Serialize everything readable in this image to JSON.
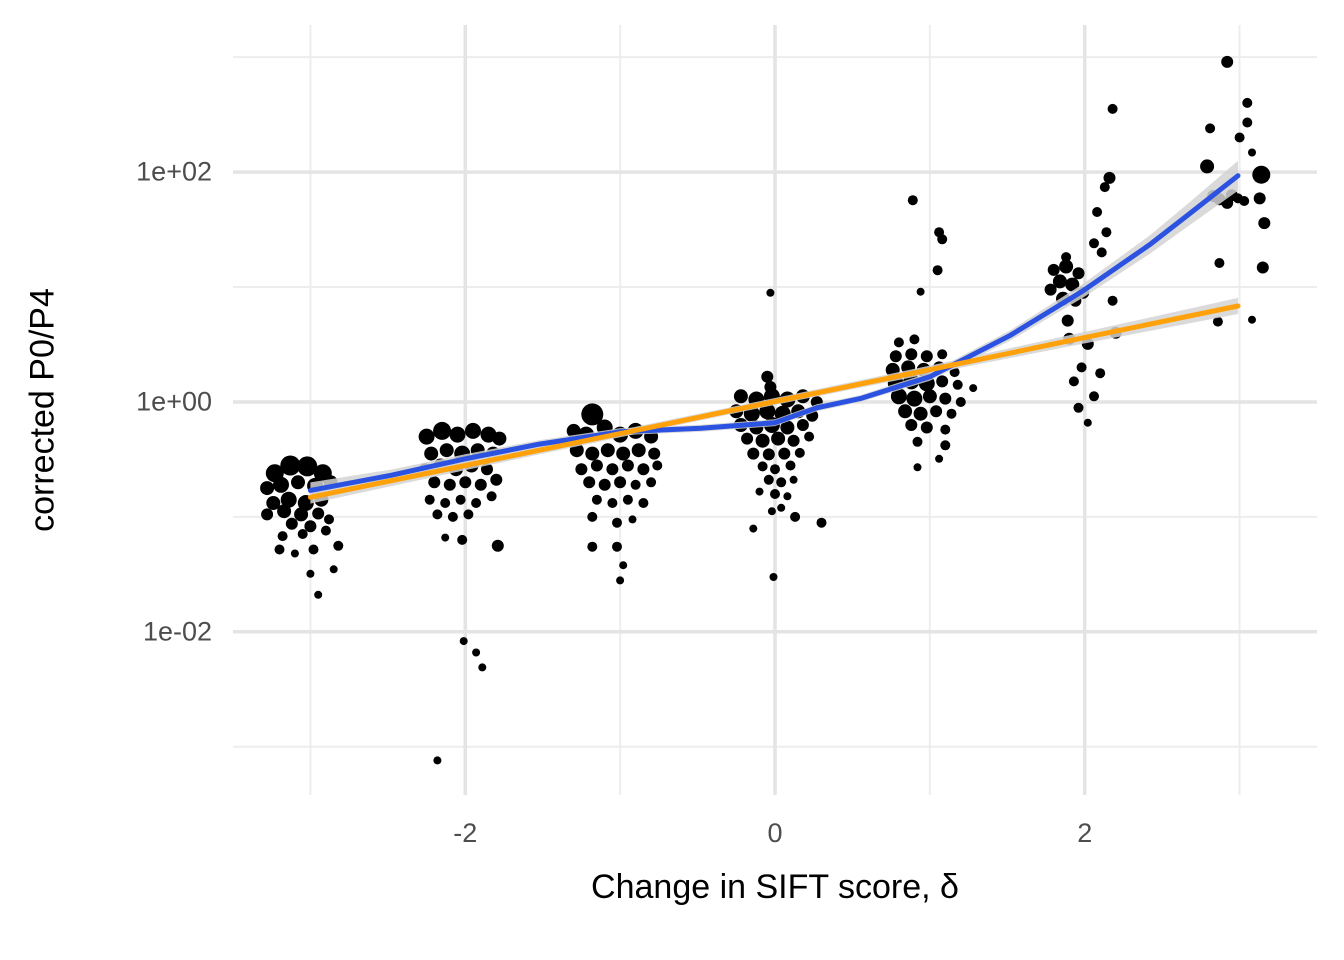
{
  "figure": {
    "background": "#ffffff",
    "grid_major_color": "#e4e4e4",
    "grid_minor_color": "#ededed",
    "tick_label_color": "#4d4d4d",
    "point_color": "#000000",
    "band_color": "#d4d4d4"
  },
  "chart_data": {
    "type": "scatter",
    "title": "",
    "xlabel": "Change in SIFT score, δ",
    "ylabel": "corrected P0/P4",
    "grid": true,
    "legend": "none",
    "x_axis": {
      "range": [
        -3.5,
        3.5
      ],
      "major_ticks": [
        -2,
        0,
        2
      ],
      "major_tick_labels": [
        "-2",
        "0",
        "2"
      ],
      "minor_ticks": [
        -3,
        -1,
        1,
        3
      ]
    },
    "y_axis": {
      "scale": "log10",
      "range_log10": [
        -3.42,
        3.28
      ],
      "major_ticks_log10": [
        2,
        0,
        -2
      ],
      "major_tick_labels": [
        "1e+02",
        "1e+00",
        "1e-02"
      ],
      "minor_ticks_log10": [
        3,
        1,
        -1,
        -3
      ]
    },
    "points_format": [
      "x_delta",
      "y_value",
      "radius_px"
    ],
    "points": [
      [
        -3.23,
        0.24,
        9
      ],
      [
        -3.13,
        0.28,
        10
      ],
      [
        -3.02,
        0.275,
        10
      ],
      [
        -2.92,
        0.24,
        9
      ],
      [
        -3.28,
        0.178,
        7
      ],
      [
        -3.19,
        0.19,
        8
      ],
      [
        -3.08,
        0.2,
        7
      ],
      [
        -2.97,
        0.186,
        8
      ],
      [
        -2.87,
        0.2,
        7
      ],
      [
        -3.24,
        0.132,
        7
      ],
      [
        -3.14,
        0.141,
        8
      ],
      [
        -3.03,
        0.132,
        8
      ],
      [
        -2.93,
        0.141,
        7
      ],
      [
        -3.28,
        0.105,
        6
      ],
      [
        -3.17,
        0.112,
        7
      ],
      [
        -3.06,
        0.105,
        7
      ],
      [
        -2.95,
        0.107,
        6
      ],
      [
        -3.12,
        0.087,
        6
      ],
      [
        -3.0,
        0.083,
        6
      ],
      [
        -2.88,
        0.095,
        5
      ],
      [
        -3.18,
        0.068,
        5
      ],
      [
        -3.05,
        0.071,
        5
      ],
      [
        -2.9,
        0.076,
        5
      ],
      [
        -3.2,
        0.052,
        5
      ],
      [
        -3.1,
        0.048,
        4
      ],
      [
        -2.98,
        0.052,
        5
      ],
      [
        -2.82,
        0.056,
        5
      ],
      [
        -3.0,
        0.032,
        4
      ],
      [
        -2.85,
        0.035,
        4
      ],
      [
        -2.95,
        0.021,
        4
      ],
      [
        -2.25,
        0.5,
        8
      ],
      [
        -2.15,
        0.56,
        9
      ],
      [
        -2.05,
        0.52,
        8
      ],
      [
        -1.95,
        0.56,
        8
      ],
      [
        -1.85,
        0.52,
        8
      ],
      [
        -1.78,
        0.48,
        7
      ],
      [
        -2.22,
        0.355,
        7
      ],
      [
        -2.12,
        0.38,
        7
      ],
      [
        -2.02,
        0.355,
        8
      ],
      [
        -1.92,
        0.38,
        7
      ],
      [
        -1.82,
        0.355,
        7
      ],
      [
        -2.26,
        0.26,
        6
      ],
      [
        -2.16,
        0.28,
        7
      ],
      [
        -2.06,
        0.26,
        7
      ],
      [
        -1.96,
        0.28,
        7
      ],
      [
        -1.86,
        0.26,
        6
      ],
      [
        -2.2,
        0.2,
        6
      ],
      [
        -2.1,
        0.19,
        6
      ],
      [
        -2.0,
        0.2,
        6
      ],
      [
        -1.9,
        0.19,
        6
      ],
      [
        -1.8,
        0.21,
        6
      ],
      [
        -2.23,
        0.141,
        5
      ],
      [
        -2.13,
        0.132,
        5
      ],
      [
        -2.03,
        0.141,
        5
      ],
      [
        -1.93,
        0.132,
        5
      ],
      [
        -1.83,
        0.151,
        5
      ],
      [
        -2.18,
        0.105,
        5
      ],
      [
        -2.08,
        0.1,
        5
      ],
      [
        -1.98,
        0.105,
        5
      ],
      [
        -2.02,
        0.063,
        5
      ],
      [
        -2.13,
        0.066,
        4
      ],
      [
        -1.79,
        0.056,
        6
      ],
      [
        -2.01,
        0.0083,
        4
      ],
      [
        -1.93,
        0.0066,
        4
      ],
      [
        -1.89,
        0.0049,
        4
      ],
      [
        -2.18,
        0.00076,
        4
      ],
      [
        -1.18,
        0.78,
        11
      ],
      [
        -1.3,
        0.56,
        7
      ],
      [
        -1.22,
        0.52,
        8
      ],
      [
        -1.1,
        0.6,
        8
      ],
      [
        -1.0,
        0.52,
        8
      ],
      [
        -0.9,
        0.56,
        8
      ],
      [
        -0.8,
        0.5,
        7
      ],
      [
        -1.28,
        0.38,
        7
      ],
      [
        -1.18,
        0.355,
        7
      ],
      [
        -1.08,
        0.38,
        7
      ],
      [
        -0.98,
        0.355,
        7
      ],
      [
        -0.88,
        0.38,
        7
      ],
      [
        -0.78,
        0.355,
        6
      ],
      [
        -1.25,
        0.26,
        6
      ],
      [
        -1.15,
        0.28,
        6
      ],
      [
        -1.05,
        0.26,
        6
      ],
      [
        -0.95,
        0.28,
        6
      ],
      [
        -0.85,
        0.26,
        6
      ],
      [
        -0.76,
        0.28,
        5
      ],
      [
        -1.2,
        0.2,
        6
      ],
      [
        -1.1,
        0.19,
        6
      ],
      [
        -1.0,
        0.2,
        6
      ],
      [
        -0.9,
        0.19,
        5
      ],
      [
        -0.8,
        0.2,
        5
      ],
      [
        -1.15,
        0.141,
        5
      ],
      [
        -1.05,
        0.132,
        5
      ],
      [
        -0.95,
        0.141,
        5
      ],
      [
        -0.85,
        0.132,
        5
      ],
      [
        -1.18,
        0.1,
        5
      ],
      [
        -1.02,
        0.089,
        5
      ],
      [
        -0.92,
        0.095,
        4
      ],
      [
        -1.18,
        0.055,
        5
      ],
      [
        -1.02,
        0.055,
        5
      ],
      [
        -0.98,
        0.038,
        4
      ],
      [
        -1.0,
        0.028,
        4
      ],
      [
        -0.03,
        8.9,
        4
      ],
      [
        -0.05,
        1.66,
        6
      ],
      [
        -0.03,
        1.35,
        6
      ],
      [
        -0.22,
        1.12,
        7
      ],
      [
        -0.12,
        1.05,
        8
      ],
      [
        -0.02,
        1.12,
        8
      ],
      [
        0.08,
        1.05,
        8
      ],
      [
        0.18,
        1.12,
        7
      ],
      [
        0.27,
        1.0,
        6
      ],
      [
        -0.25,
        0.83,
        7
      ],
      [
        -0.15,
        0.79,
        8
      ],
      [
        -0.05,
        0.83,
        8
      ],
      [
        0.05,
        0.79,
        8
      ],
      [
        0.15,
        0.83,
        7
      ],
      [
        0.24,
        0.76,
        6
      ],
      [
        -0.22,
        0.63,
        7
      ],
      [
        -0.12,
        0.6,
        7
      ],
      [
        -0.02,
        0.63,
        8
      ],
      [
        0.08,
        0.6,
        7
      ],
      [
        0.18,
        0.63,
        6
      ],
      [
        -0.18,
        0.48,
        6
      ],
      [
        -0.08,
        0.46,
        7
      ],
      [
        0.02,
        0.48,
        7
      ],
      [
        0.12,
        0.46,
        6
      ],
      [
        0.22,
        0.5,
        5
      ],
      [
        -0.14,
        0.355,
        6
      ],
      [
        -0.04,
        0.35,
        6
      ],
      [
        0.06,
        0.355,
        6
      ],
      [
        0.16,
        0.36,
        5
      ],
      [
        -0.08,
        0.275,
        5
      ],
      [
        0.0,
        0.26,
        5
      ],
      [
        0.1,
        0.28,
        5
      ],
      [
        -0.04,
        0.21,
        5
      ],
      [
        0.04,
        0.2,
        5
      ],
      [
        0.12,
        0.21,
        4
      ],
      [
        0.0,
        0.158,
        5
      ],
      [
        0.08,
        0.151,
        4
      ],
      [
        -0.1,
        0.166,
        4
      ],
      [
        0.04,
        0.12,
        4
      ],
      [
        -0.02,
        0.112,
        4
      ],
      [
        0.13,
        0.1,
        5
      ],
      [
        0.3,
        0.089,
        5
      ],
      [
        -0.14,
        0.079,
        4
      ],
      [
        -0.01,
        0.03,
        4
      ],
      [
        0.89,
        57,
        5
      ],
      [
        1.06,
        30,
        5
      ],
      [
        1.08,
        26,
        5
      ],
      [
        0.94,
        9.1,
        4
      ],
      [
        1.05,
        14,
        5
      ],
      [
        0.8,
        3.3,
        5
      ],
      [
        0.9,
        3.5,
        5
      ],
      [
        0.78,
        2.5,
        6
      ],
      [
        0.88,
        2.6,
        6
      ],
      [
        0.98,
        2.5,
        6
      ],
      [
        1.08,
        2.6,
        5
      ],
      [
        0.76,
        1.9,
        7
      ],
      [
        0.86,
        2.0,
        7
      ],
      [
        0.96,
        1.9,
        7
      ],
      [
        1.06,
        2.0,
        6
      ],
      [
        1.16,
        1.82,
        5
      ],
      [
        0.78,
        1.45,
        8
      ],
      [
        0.88,
        1.51,
        8
      ],
      [
        0.98,
        1.45,
        8
      ],
      [
        1.08,
        1.51,
        6
      ],
      [
        1.18,
        1.41,
        5
      ],
      [
        1.28,
        1.32,
        4
      ],
      [
        0.8,
        1.12,
        8
      ],
      [
        0.9,
        1.07,
        8
      ],
      [
        1.0,
        1.12,
        7
      ],
      [
        1.1,
        1.07,
        6
      ],
      [
        1.2,
        1.0,
        5
      ],
      [
        0.84,
        0.83,
        7
      ],
      [
        0.94,
        0.79,
        7
      ],
      [
        1.04,
        0.83,
        6
      ],
      [
        1.14,
        0.79,
        5
      ],
      [
        0.88,
        0.63,
        6
      ],
      [
        0.98,
        0.6,
        6
      ],
      [
        1.1,
        0.575,
        5
      ],
      [
        0.92,
        0.45,
        5
      ],
      [
        1.1,
        0.42,
        5
      ],
      [
        0.92,
        0.27,
        4
      ],
      [
        1.06,
        0.32,
        4
      ],
      [
        2.18,
        355,
        5
      ],
      [
        2.16,
        89,
        6
      ],
      [
        2.13,
        74,
        5
      ],
      [
        2.08,
        45,
        5
      ],
      [
        2.14,
        30,
        5
      ],
      [
        2.06,
        24,
        5
      ],
      [
        2.11,
        20,
        5
      ],
      [
        1.88,
        18.2,
        5
      ],
      [
        1.8,
        14.1,
        6
      ],
      [
        1.88,
        15.1,
        7
      ],
      [
        1.96,
        13.2,
        6
      ],
      [
        1.84,
        11.2,
        7
      ],
      [
        1.92,
        10.5,
        7
      ],
      [
        1.78,
        9.5,
        6
      ],
      [
        1.99,
        8.9,
        6
      ],
      [
        1.86,
        7.9,
        7
      ],
      [
        1.94,
        7.6,
        6
      ],
      [
        2.18,
        7.6,
        5
      ],
      [
        1.89,
        5.1,
        6
      ],
      [
        2.2,
        4.0,
        6
      ],
      [
        1.9,
        3.55,
        6
      ],
      [
        2.02,
        3.2,
        6
      ],
      [
        1.98,
        2.0,
        5
      ],
      [
        2.1,
        1.78,
        5
      ],
      [
        1.93,
        1.51,
        5
      ],
      [
        2.06,
        1.12,
        5
      ],
      [
        1.96,
        0.89,
        5
      ],
      [
        2.02,
        0.66,
        4
      ],
      [
        2.92,
        910,
        6
      ],
      [
        3.05,
        400,
        5
      ],
      [
        3.05,
        270,
        5
      ],
      [
        2.81,
        240,
        5
      ],
      [
        3.0,
        200,
        5
      ],
      [
        3.08,
        148,
        4
      ],
      [
        2.79,
        112,
        7
      ],
      [
        3.14,
        95,
        9
      ],
      [
        2.83,
        62,
        6
      ],
      [
        2.87,
        58,
        6
      ],
      [
        2.92,
        54,
        6
      ],
      [
        2.95,
        63,
        6
      ],
      [
        2.99,
        59,
        5
      ],
      [
        3.03,
        56,
        5
      ],
      [
        3.13,
        59,
        6
      ],
      [
        3.16,
        36,
        6
      ],
      [
        2.87,
        16.2,
        5
      ],
      [
        3.15,
        14.8,
        6
      ],
      [
        2.86,
        5.0,
        5
      ],
      [
        3.08,
        5.2,
        4
      ]
    ],
    "smooths": [
      {
        "name": "loess-smooth",
        "color": "#2b52e0",
        "stroke_width": 5,
        "x": [
          -3.0,
          -2.48,
          -2.0,
          -1.52,
          -1.0,
          -0.48,
          0.0,
          0.27,
          0.55,
          1.0,
          1.52,
          1.99,
          2.42,
          2.68,
          2.99
        ],
        "y": [
          0.17,
          0.23,
          0.32,
          0.43,
          0.55,
          0.59,
          0.66,
          0.89,
          1.07,
          1.66,
          3.8,
          9.3,
          23.4,
          43.7,
          93
        ],
        "band_halfwidth_log10": [
          0.07,
          0.05,
          0.04,
          0.035,
          0.03,
          0.03,
          0.03,
          0.03,
          0.03,
          0.035,
          0.045,
          0.06,
          0.08,
          0.1,
          0.13
        ]
      },
      {
        "name": "linear-fit",
        "color": "#ffa10a",
        "stroke_width": 5,
        "x": [
          -3.0,
          -2.0,
          -1.0,
          0.0,
          1.0,
          2.0,
          2.99
        ],
        "y": [
          0.148,
          0.28,
          0.53,
          1.01,
          1.91,
          3.63,
          6.84
        ],
        "band_halfwidth_log10": [
          0.055,
          0.04,
          0.032,
          0.03,
          0.035,
          0.05,
          0.07
        ]
      }
    ]
  }
}
